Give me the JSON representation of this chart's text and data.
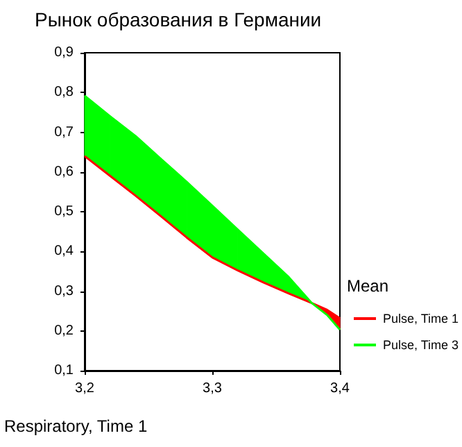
{
  "chart_data": {
    "type": "line",
    "title": "Рынок образования в Германии",
    "xlabel": "Respiratory, Time 1",
    "legend_title": "Mean",
    "x": [
      3.2,
      3.22,
      3.24,
      3.26,
      3.28,
      3.3,
      3.32,
      3.34,
      3.36,
      3.378,
      3.39,
      3.4
    ],
    "series": [
      {
        "name": "Pulse, Time 1",
        "color": "#ff0000",
        "values": [
          0.64,
          0.59,
          0.54,
          0.488,
          0.435,
          0.385,
          0.352,
          0.322,
          0.294,
          0.27,
          0.253,
          0.232
        ],
        "lower": [
          null,
          null,
          null,
          null,
          null,
          null,
          null,
          null,
          null,
          0.27,
          0.24,
          0.203
        ],
        "upper": [
          null,
          null,
          null,
          null,
          null,
          null,
          null,
          null,
          null,
          0.27,
          0.253,
          0.232
        ]
      },
      {
        "name": "Pulse, Time 3",
        "color": "#00ff00",
        "values": [
          0.792,
          0.74,
          0.69,
          0.632,
          0.575,
          0.515,
          0.455,
          0.395,
          0.335,
          0.27,
          0.24,
          0.203
        ],
        "lower": [
          0.64,
          0.59,
          0.54,
          0.488,
          0.435,
          0.385,
          0.352,
          0.322,
          0.294,
          0.27,
          null,
          null
        ],
        "upper": [
          0.792,
          0.74,
          0.69,
          0.632,
          0.575,
          0.515,
          0.455,
          0.395,
          0.335,
          0.27,
          null,
          null
        ]
      }
    ],
    "xlim": [
      3.2,
      3.4
    ],
    "xticks": [
      {
        "value": 3.2,
        "label": "3,2"
      },
      {
        "value": 3.3,
        "label": "3,3"
      },
      {
        "value": 3.4,
        "label": "3,4"
      }
    ],
    "ylim": [
      0.1,
      0.9
    ],
    "yticks": [
      {
        "value": 0.1,
        "label": "0,1"
      },
      {
        "value": 0.2,
        "label": "0,2"
      },
      {
        "value": 0.3,
        "label": "0,3"
      },
      {
        "value": 0.4,
        "label": "0,4"
      },
      {
        "value": 0.5,
        "label": "0,5"
      },
      {
        "value": 0.6,
        "label": "0,6"
      },
      {
        "value": 0.7,
        "label": "0,7"
      },
      {
        "value": 0.8,
        "label": "0,8"
      },
      {
        "value": 0.9,
        "label": "0,9"
      }
    ],
    "grid": false,
    "legend": "right",
    "marker": "none"
  }
}
